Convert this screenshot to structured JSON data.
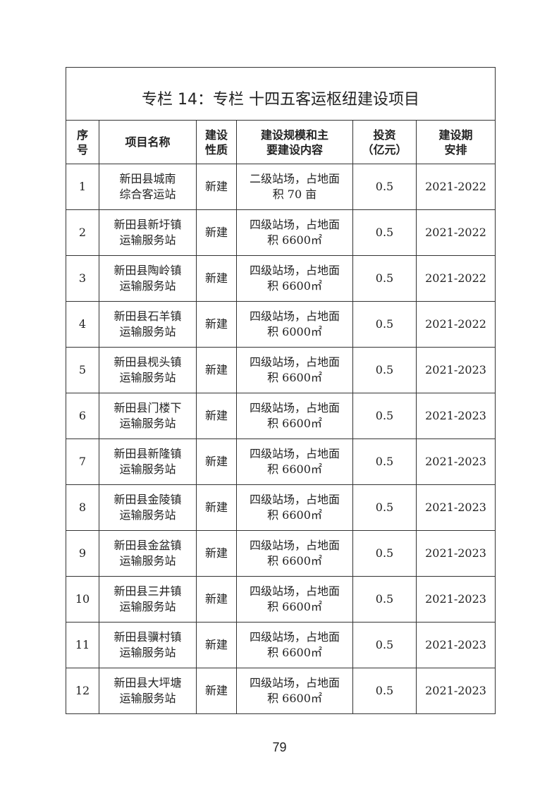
{
  "title": "专栏 14：专栏 十四五客运枢纽建设项目",
  "headers": [
    "序\n号",
    "项目名称",
    "建设\n性质",
    "建设规模和主\n要建设内容",
    "投资\n（亿元）",
    "建设期\n安排"
  ],
  "rows": [
    {
      "no": "1",
      "name": "新田县城南\n综合客运站",
      "type": "新建",
      "scale": "二级站场，占地面\n积 70 亩",
      "invest": "0.5",
      "period": "2021-2022"
    },
    {
      "no": "2",
      "name": "新田县新圩镇\n运输服务站",
      "type": "新建",
      "scale": "四级站场，占地面\n积 6600㎡",
      "invest": "0.5",
      "period": "2021-2022"
    },
    {
      "no": "3",
      "name": "新田县陶岭镇\n运输服务站",
      "type": "新建",
      "scale": "四级站场，占地面\n积 6600㎡",
      "invest": "0.5",
      "period": "2021-2022"
    },
    {
      "no": "4",
      "name": "新田县石羊镇\n运输服务站",
      "type": "新建",
      "scale": "四级站场，占地面\n积 6000㎡",
      "invest": "0.5",
      "period": "2021-2022"
    },
    {
      "no": "5",
      "name": "新田县枧头镇\n运输服务站",
      "type": "新建",
      "scale": "四级站场，占地面\n积 6600㎡",
      "invest": "0.5",
      "period": "2021-2023"
    },
    {
      "no": "6",
      "name": "新田县门楼下\n运输服务站",
      "type": "新建",
      "scale": "四级站场，占地面\n积 6600㎡",
      "invest": "0.5",
      "period": "2021-2023"
    },
    {
      "no": "7",
      "name": "新田县新隆镇\n运输服务站",
      "type": "新建",
      "scale": "四级站场，占地面\n积 6600㎡",
      "invest": "0.5",
      "period": "2021-2023"
    },
    {
      "no": "8",
      "name": "新田县金陵镇\n运输服务站",
      "type": "新建",
      "scale": "四级站场，占地面\n积 6600㎡",
      "invest": "0.5",
      "period": "2021-2023"
    },
    {
      "no": "9",
      "name": "新田县金盆镇\n运输服务站",
      "type": "新建",
      "scale": "四级站场，占地面\n积 6600㎡",
      "invest": "0.5",
      "period": "2021-2023"
    },
    {
      "no": "10",
      "name": "新田县三井镇\n运输服务站",
      "type": "新建",
      "scale": "四级站场，占地面\n积 6600㎡",
      "invest": "0.5",
      "period": "2021-2023"
    },
    {
      "no": "11",
      "name": "新田县骥村镇\n运输服务站",
      "type": "新建",
      "scale": "四级站场，占地面\n积 6600㎡",
      "invest": "0.5",
      "period": "2021-2023"
    },
    {
      "no": "12",
      "name": "新田县大坪塘\n运输服务站",
      "type": "新建",
      "scale": "四级站场，占地面\n积 6600㎡",
      "invest": "0.5",
      "period": "2021-2023"
    }
  ],
  "page_number": "79"
}
